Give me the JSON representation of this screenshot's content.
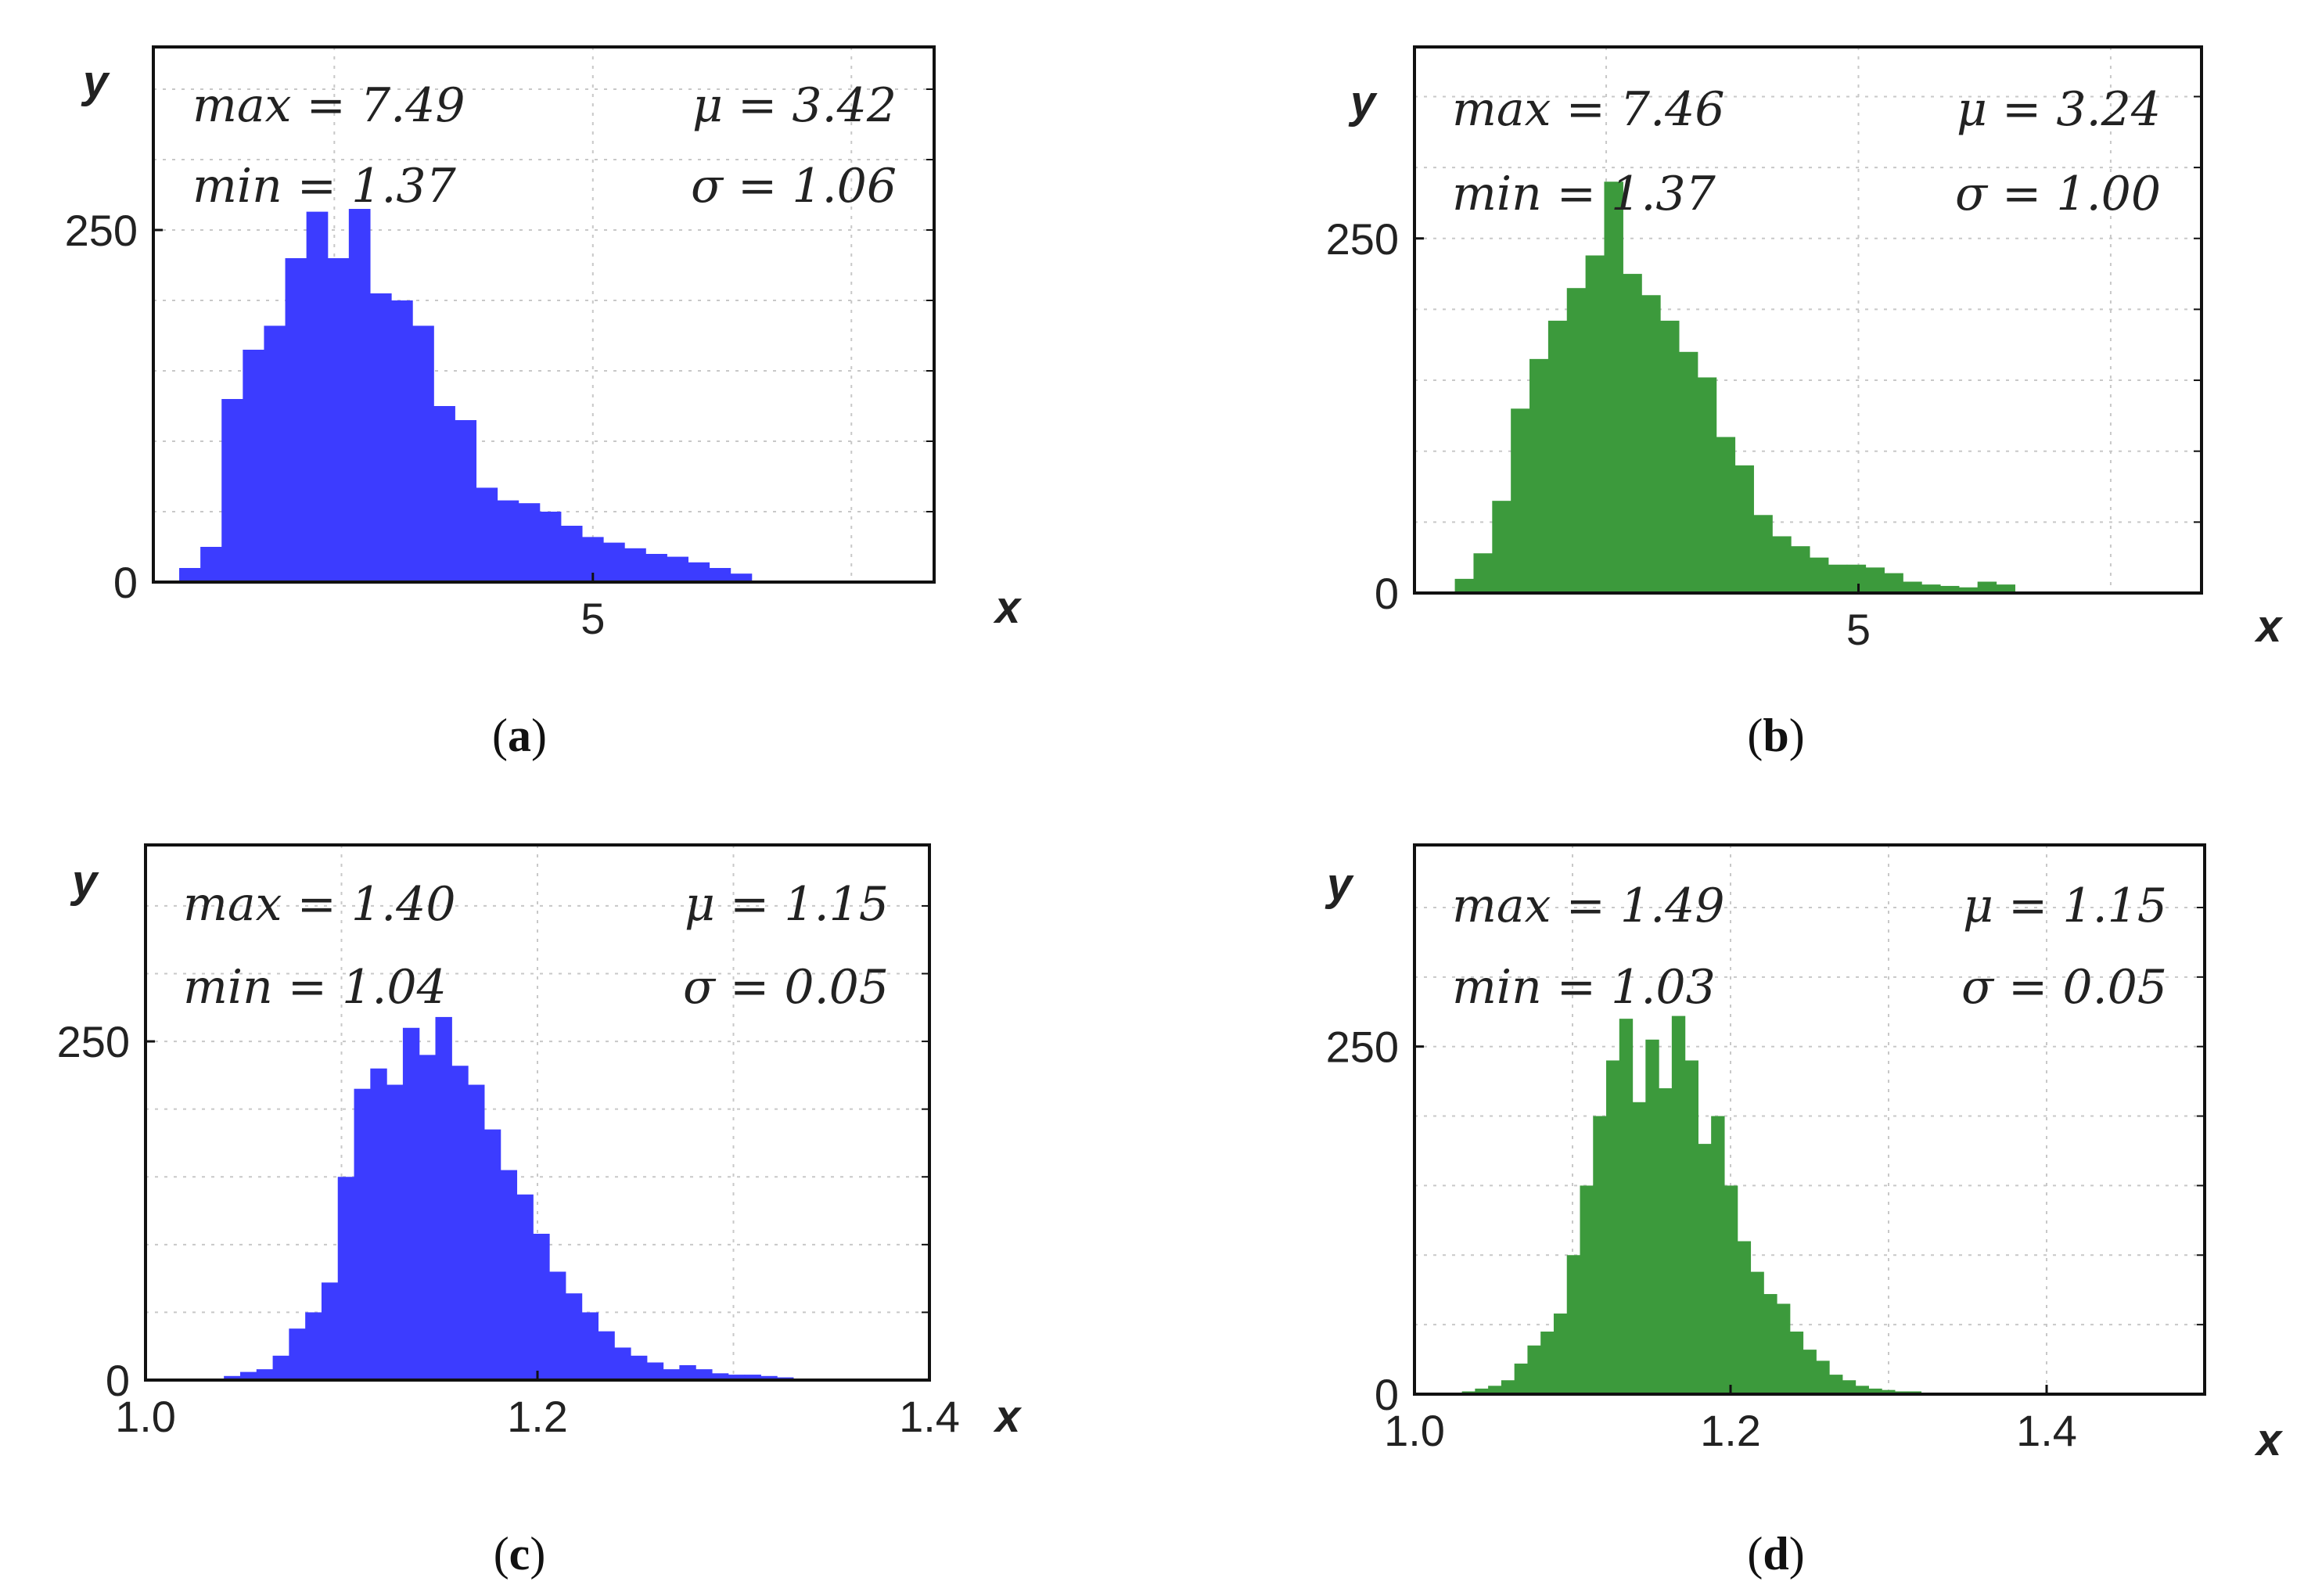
{
  "chart_data": [
    {
      "id": "a",
      "type": "bar",
      "caption": "a",
      "color": "#3c3cff",
      "xlabel": "x",
      "ylabel": "y",
      "xlim": [
        0.75,
        8.3
      ],
      "ylim": [
        0,
        380
      ],
      "xticks": [
        {
          "v": 5,
          "label": "5"
        }
      ],
      "yticks": [
        {
          "v": 0,
          "label": "0"
        },
        {
          "v": 250,
          "label": "250"
        }
      ],
      "xgrid": [
        2.5,
        5,
        7.5
      ],
      "ygrid": [
        50,
        100,
        150,
        200,
        250,
        300,
        350
      ],
      "bins": {
        "start": 1.0,
        "width": 0.205
      },
      "values": [
        10,
        25,
        130,
        165,
        182,
        230,
        263,
        230,
        265,
        205,
        200,
        182,
        125,
        115,
        67,
        58,
        56,
        50,
        40,
        32,
        28,
        24,
        20,
        18,
        14,
        10,
        6
      ],
      "stats": {
        "max": "max = 7.49",
        "min": "min = 1.37",
        "mu": "μ = 3.42",
        "sigma": "σ = 1.06"
      }
    },
    {
      "id": "b",
      "type": "bar",
      "caption": "b",
      "color": "#3c9a3c",
      "xlabel": "x",
      "ylabel": "y",
      "xlim": [
        0.6,
        8.4
      ],
      "ylim": [
        0,
        385
      ],
      "xticks": [
        {
          "v": 5,
          "label": "5"
        }
      ],
      "yticks": [
        {
          "v": 0,
          "label": "0"
        },
        {
          "v": 250,
          "label": "250"
        }
      ],
      "xgrid": [
        2.5,
        5,
        7.5
      ],
      "ygrid": [
        50,
        100,
        150,
        200,
        250,
        300,
        350
      ],
      "bins": {
        "start": 1.0,
        "width": 0.185
      },
      "values": [
        10,
        28,
        65,
        130,
        165,
        192,
        215,
        238,
        290,
        225,
        210,
        192,
        170,
        152,
        110,
        90,
        55,
        40,
        33,
        25,
        20,
        20,
        18,
        14,
        8,
        6,
        5,
        4,
        8,
        6
      ],
      "stats": {
        "max": "max = 7.46",
        "min": "min = 1.37",
        "mu": "μ = 3.24",
        "sigma": "σ = 1.00"
      }
    },
    {
      "id": "c",
      "type": "bar",
      "caption": "c",
      "color": "#3c3cff",
      "xlabel": "x",
      "ylabel": "y",
      "xlim": [
        1.0,
        1.4
      ],
      "ylim": [
        0,
        395
      ],
      "xticks": [
        {
          "v": 1.0,
          "label": "1.0"
        },
        {
          "v": 1.2,
          "label": "1.2"
        },
        {
          "v": 1.4,
          "label": "1.4"
        }
      ],
      "yticks": [
        {
          "v": 0,
          "label": "0"
        },
        {
          "v": 250,
          "label": "250"
        }
      ],
      "xgrid": [
        1.1,
        1.2,
        1.3
      ],
      "ygrid": [
        50,
        100,
        150,
        200,
        250,
        300,
        350
      ],
      "bins": {
        "start": 1.04,
        "width": 0.0083
      },
      "values": [
        3,
        6,
        8,
        18,
        38,
        50,
        72,
        150,
        215,
        230,
        218,
        260,
        240,
        268,
        232,
        218,
        185,
        155,
        137,
        108,
        80,
        64,
        50,
        36,
        24,
        18,
        13,
        8,
        11,
        8,
        5,
        4,
        4,
        3,
        2
      ],
      "stats": {
        "max": "max = 1.40",
        "min": "min = 1.04",
        "mu": "μ = 1.15",
        "sigma": "σ = 0.05"
      }
    },
    {
      "id": "d",
      "type": "bar",
      "caption": "d",
      "color": "#3c9a3c",
      "xlabel": "x",
      "ylabel": "y",
      "xlim": [
        1.0,
        1.5
      ],
      "ylim": [
        0,
        395
      ],
      "xticks": [
        {
          "v": 1.0,
          "label": "1.0"
        },
        {
          "v": 1.2,
          "label": "1.2"
        },
        {
          "v": 1.4,
          "label": "1.4"
        }
      ],
      "yticks": [
        {
          "v": 0,
          "label": "0"
        },
        {
          "v": 250,
          "label": "250"
        }
      ],
      "xgrid": [
        1.1,
        1.2,
        1.3,
        1.4
      ],
      "ygrid": [
        50,
        100,
        150,
        200,
        250,
        300,
        350
      ],
      "bins": {
        "start": 1.03,
        "width": 0.0083
      },
      "values": [
        2,
        4,
        6,
        10,
        22,
        35,
        45,
        58,
        100,
        150,
        200,
        240,
        270,
        210,
        255,
        220,
        272,
        240,
        180,
        200,
        150,
        110,
        88,
        72,
        65,
        45,
        32,
        24,
        14,
        10,
        6,
        4,
        3,
        2,
        2,
        1,
        1,
        1
      ],
      "stats": {
        "max": "max = 1.49",
        "min": "min = 1.03",
        "mu": "μ = 1.15",
        "sigma": "σ = 0.05"
      }
    }
  ]
}
